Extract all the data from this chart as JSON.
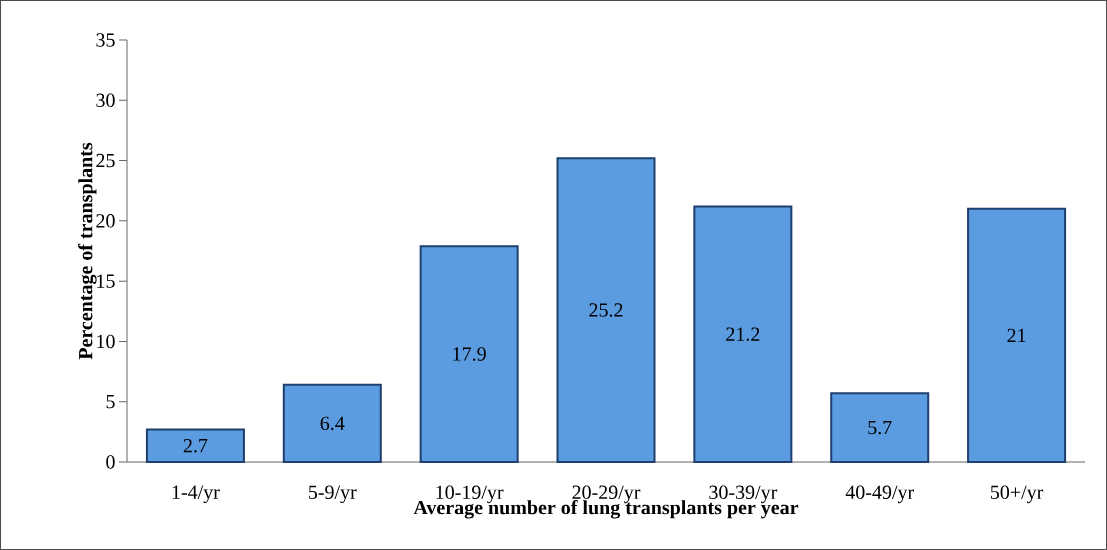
{
  "chart_data": {
    "type": "bar",
    "xlabel": "Average number of lung transplants per year",
    "ylabel": "Percentage of transplants",
    "categories": [
      "1-4/yr",
      "5-9/yr",
      "10-19/yr",
      "20-29/yr",
      "30-39/yr",
      "40-49/yr",
      "50+/yr"
    ],
    "values": [
      2.7,
      6.4,
      17.9,
      25.2,
      21.2,
      5.7,
      21
    ],
    "color": "#5b9be0",
    "ylim": [
      0,
      35
    ],
    "yticks": [
      0,
      5,
      10,
      15,
      20,
      25,
      30,
      35
    ],
    "data_labels": true,
    "grid": false
  }
}
